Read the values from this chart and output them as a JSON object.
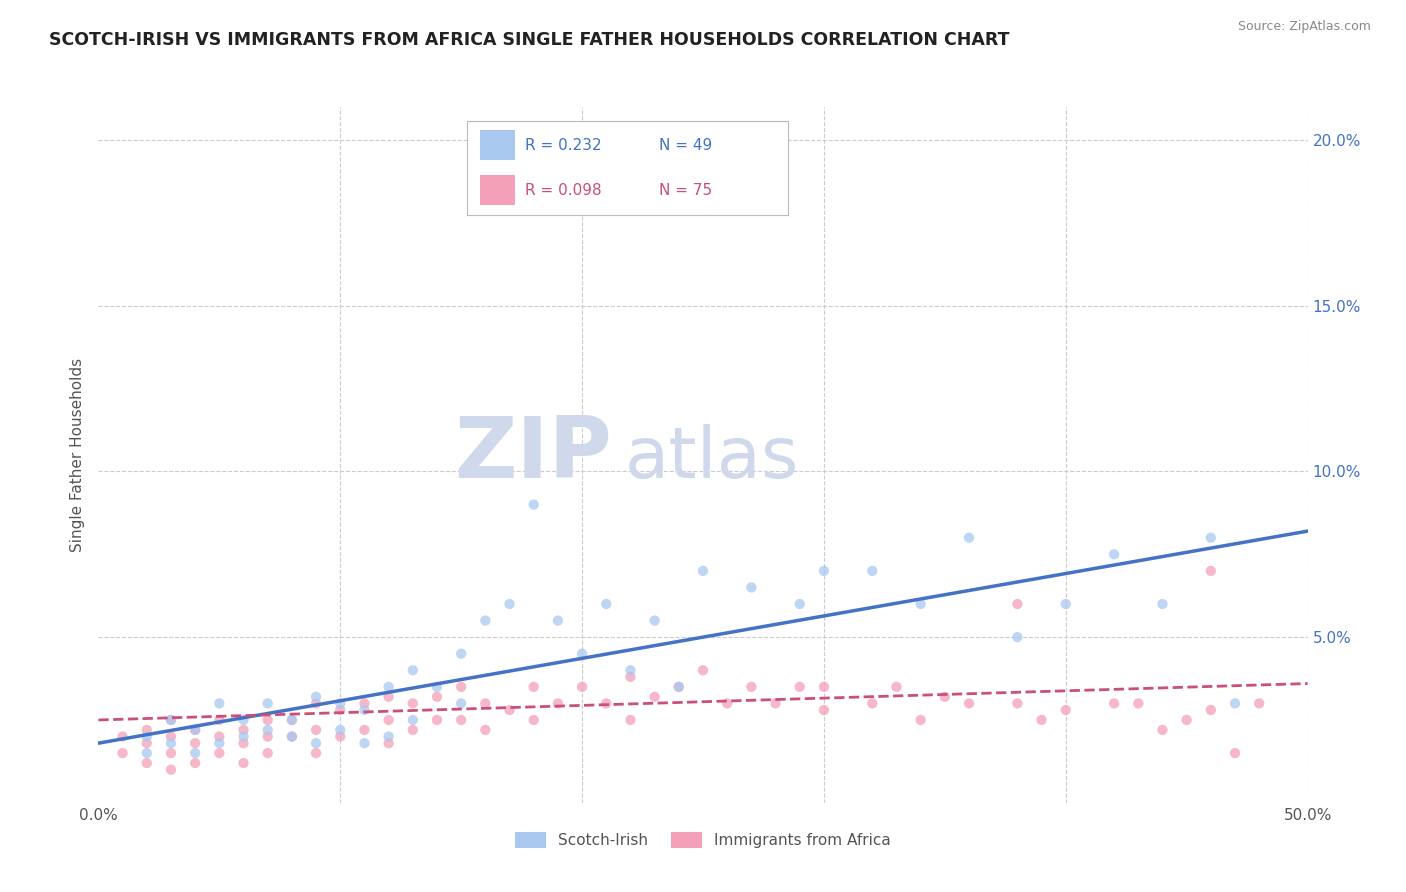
{
  "title": "SCOTCH-IRISH VS IMMIGRANTS FROM AFRICA SINGLE FATHER HOUSEHOLDS CORRELATION CHART",
  "source": "Source: ZipAtlas.com",
  "ylabel": "Single Father Households",
  "xlim": [
    0.0,
    0.5
  ],
  "ylim": [
    0.0,
    0.21
  ],
  "series1_label": "Scotch-Irish",
  "series1_R": "0.232",
  "series1_N": "49",
  "series1_color": "#a8c8f0",
  "series1_trend_color": "#4472c4",
  "series2_label": "Immigrants from Africa",
  "series2_R": "0.098",
  "series2_N": "75",
  "series2_color": "#f4a0b8",
  "series2_trend_color": "#c8507a",
  "watermark_zip": "ZIP",
  "watermark_atlas": "atlas",
  "watermark_color": "#d0d8ec",
  "background_color": "#ffffff",
  "grid_color": "#cccccc",
  "title_color": "#222222",
  "scatter1_x": [
    0.02,
    0.02,
    0.03,
    0.03,
    0.04,
    0.04,
    0.05,
    0.05,
    0.06,
    0.06,
    0.07,
    0.07,
    0.08,
    0.08,
    0.09,
    0.09,
    0.1,
    0.1,
    0.11,
    0.11,
    0.12,
    0.12,
    0.13,
    0.13,
    0.14,
    0.15,
    0.15,
    0.16,
    0.17,
    0.18,
    0.19,
    0.2,
    0.21,
    0.22,
    0.23,
    0.24,
    0.25,
    0.27,
    0.29,
    0.3,
    0.32,
    0.34,
    0.36,
    0.38,
    0.4,
    0.42,
    0.44,
    0.46,
    0.47
  ],
  "scatter1_y": [
    0.02,
    0.015,
    0.025,
    0.018,
    0.022,
    0.015,
    0.03,
    0.018,
    0.025,
    0.02,
    0.03,
    0.022,
    0.025,
    0.02,
    0.032,
    0.018,
    0.03,
    0.022,
    0.028,
    0.018,
    0.035,
    0.02,
    0.04,
    0.025,
    0.035,
    0.045,
    0.03,
    0.055,
    0.06,
    0.09,
    0.055,
    0.045,
    0.06,
    0.04,
    0.055,
    0.035,
    0.07,
    0.065,
    0.06,
    0.07,
    0.07,
    0.06,
    0.08,
    0.05,
    0.06,
    0.075,
    0.06,
    0.08,
    0.03
  ],
  "scatter2_x": [
    0.01,
    0.01,
    0.02,
    0.02,
    0.02,
    0.03,
    0.03,
    0.03,
    0.03,
    0.04,
    0.04,
    0.04,
    0.05,
    0.05,
    0.05,
    0.06,
    0.06,
    0.06,
    0.07,
    0.07,
    0.07,
    0.08,
    0.08,
    0.09,
    0.09,
    0.09,
    0.1,
    0.1,
    0.11,
    0.11,
    0.12,
    0.12,
    0.12,
    0.13,
    0.13,
    0.14,
    0.14,
    0.15,
    0.15,
    0.16,
    0.16,
    0.17,
    0.18,
    0.18,
    0.19,
    0.2,
    0.21,
    0.22,
    0.22,
    0.23,
    0.24,
    0.25,
    0.26,
    0.27,
    0.28,
    0.29,
    0.3,
    0.3,
    0.32,
    0.33,
    0.34,
    0.35,
    0.36,
    0.38,
    0.39,
    0.4,
    0.42,
    0.43,
    0.44,
    0.45,
    0.46,
    0.47,
    0.48,
    0.38,
    0.46
  ],
  "scatter2_y": [
    0.02,
    0.015,
    0.022,
    0.018,
    0.012,
    0.025,
    0.02,
    0.015,
    0.01,
    0.022,
    0.018,
    0.012,
    0.025,
    0.02,
    0.015,
    0.022,
    0.018,
    0.012,
    0.025,
    0.02,
    0.015,
    0.025,
    0.02,
    0.03,
    0.022,
    0.015,
    0.028,
    0.02,
    0.03,
    0.022,
    0.032,
    0.025,
    0.018,
    0.03,
    0.022,
    0.032,
    0.025,
    0.035,
    0.025,
    0.03,
    0.022,
    0.028,
    0.035,
    0.025,
    0.03,
    0.035,
    0.03,
    0.038,
    0.025,
    0.032,
    0.035,
    0.04,
    0.03,
    0.035,
    0.03,
    0.035,
    0.035,
    0.028,
    0.03,
    0.035,
    0.025,
    0.032,
    0.03,
    0.03,
    0.025,
    0.028,
    0.03,
    0.03,
    0.022,
    0.025,
    0.028,
    0.015,
    0.03,
    0.06,
    0.07
  ],
  "trend1_x0": 0.0,
  "trend1_x1": 0.5,
  "trend1_y0": 0.018,
  "trend1_y1": 0.082,
  "trend2_x0": 0.0,
  "trend2_x1": 0.5,
  "trend2_y0": 0.025,
  "trend2_y1": 0.036
}
